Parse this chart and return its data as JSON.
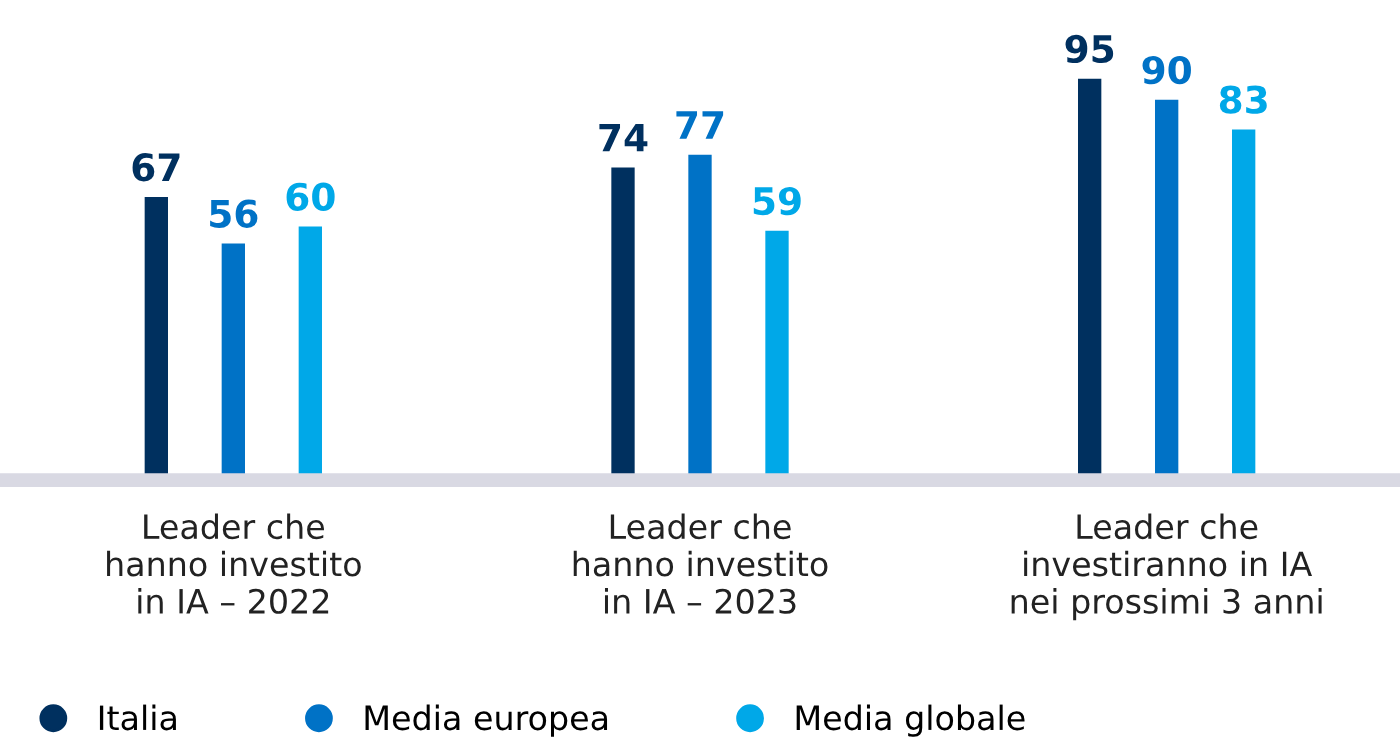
{
  "chart_data": {
    "type": "bar",
    "categories": [
      "Leader che\nhanno investito\nin IA – 2022",
      "Leader che\nhanno investito\nin IA – 2023",
      "Leader che\ninvestiranno in IA\nnei prossimi 3 anni"
    ],
    "series": [
      {
        "name": "Italia",
        "color": "#00305f",
        "values": [
          67,
          74,
          95
        ]
      },
      {
        "name": "Media europea",
        "color": "#0072c6",
        "values": [
          56,
          77,
          90
        ]
      },
      {
        "name": "Media globale",
        "color": "#00a8e8",
        "values": [
          60,
          59,
          83
        ]
      }
    ],
    "data_labels": true,
    "legend": "bottom left",
    "grid": false
  }
}
